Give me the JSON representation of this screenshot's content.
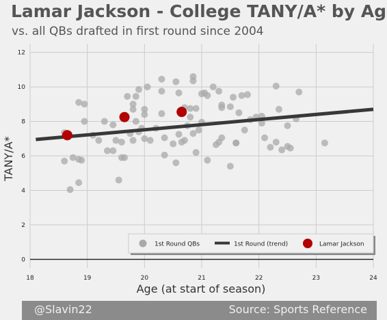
{
  "title": "Lamar Jackson - College TANY/A* by Age",
  "subtitle": "vs. all QBs drafted in first round since 2004",
  "footer": {
    "left": "@Slavin22",
    "right": "Source: Sports Reference"
  },
  "colors": {
    "background": "#f0f0f0",
    "grid": "#cbcbcb",
    "scatter": "#a9a9a9",
    "trend": "#383838",
    "highlight": "#b30000",
    "footer_bg": "#8b8b8b"
  },
  "chart_data": {
    "type": "scatter",
    "xlabel": "Age (at start of season)",
    "ylabel": "TANY/A*",
    "xlim": [
      18,
      24
    ],
    "ylim": [
      -0.5,
      12.5
    ],
    "xticks": [
      18,
      19,
      20,
      21,
      22,
      23,
      24
    ],
    "yticks": [
      0,
      2,
      4,
      6,
      8,
      10,
      12
    ],
    "grid": true,
    "legend": {
      "placement": "lower-right",
      "entries": [
        "1st Round QBs",
        "1st Round (trend)",
        "Lamar Jackson"
      ]
    },
    "series": [
      {
        "name": "1st Round QBs",
        "points": [
          [
            18.6,
            7.35
          ],
          [
            18.6,
            5.7
          ],
          [
            18.7,
            4.05
          ],
          [
            18.75,
            5.9
          ],
          [
            18.85,
            5.8
          ],
          [
            18.85,
            4.45
          ],
          [
            18.85,
            9.1
          ],
          [
            18.9,
            5.75
          ],
          [
            18.95,
            9.0
          ],
          [
            18.95,
            8.0
          ],
          [
            19.1,
            7.2
          ],
          [
            19.2,
            6.9
          ],
          [
            19.3,
            8.0
          ],
          [
            19.35,
            6.3
          ],
          [
            19.45,
            7.8
          ],
          [
            19.45,
            6.3
          ],
          [
            19.5,
            6.9
          ],
          [
            19.55,
            4.6
          ],
          [
            19.6,
            6.8
          ],
          [
            19.6,
            5.9
          ],
          [
            19.65,
            5.9
          ],
          [
            19.7,
            9.45
          ],
          [
            19.75,
            7.3
          ],
          [
            19.8,
            9.0
          ],
          [
            19.8,
            8.7
          ],
          [
            19.8,
            6.9
          ],
          [
            19.85,
            9.45
          ],
          [
            19.85,
            8.0
          ],
          [
            19.9,
            9.85
          ],
          [
            19.9,
            7.4
          ],
          [
            19.95,
            7.6
          ],
          [
            20.0,
            8.4
          ],
          [
            20.0,
            8.7
          ],
          [
            20.0,
            7.0
          ],
          [
            20.05,
            10.0
          ],
          [
            20.1,
            6.9
          ],
          [
            20.2,
            7.6
          ],
          [
            20.3,
            10.45
          ],
          [
            20.3,
            9.75
          ],
          [
            20.3,
            8.45
          ],
          [
            20.35,
            7.05
          ],
          [
            20.35,
            6.05
          ],
          [
            20.5,
            6.7
          ],
          [
            20.55,
            10.3
          ],
          [
            20.55,
            5.6
          ],
          [
            20.6,
            9.65
          ],
          [
            20.6,
            7.25
          ],
          [
            20.65,
            6.8
          ],
          [
            20.7,
            8.8
          ],
          [
            20.7,
            6.9
          ],
          [
            20.75,
            7.75
          ],
          [
            20.8,
            8.25
          ],
          [
            20.8,
            8.75
          ],
          [
            20.85,
            7.3
          ],
          [
            20.85,
            10.6
          ],
          [
            20.85,
            10.35
          ],
          [
            20.9,
            8.75
          ],
          [
            20.9,
            6.2
          ],
          [
            20.95,
            7.5
          ],
          [
            21.0,
            7.95
          ],
          [
            21.0,
            9.6
          ],
          [
            21.05,
            9.65
          ],
          [
            21.1,
            9.5
          ],
          [
            21.1,
            5.75
          ],
          [
            21.2,
            10.0
          ],
          [
            21.25,
            6.65
          ],
          [
            21.3,
            9.75
          ],
          [
            21.3,
            6.8
          ],
          [
            21.35,
            8.95
          ],
          [
            21.35,
            8.8
          ],
          [
            21.35,
            7.05
          ],
          [
            21.5,
            5.4
          ],
          [
            21.5,
            8.85
          ],
          [
            21.55,
            9.4
          ],
          [
            21.6,
            6.75
          ],
          [
            21.6,
            6.75
          ],
          [
            21.65,
            8.5
          ],
          [
            21.7,
            9.5
          ],
          [
            21.75,
            7.5
          ],
          [
            21.8,
            9.55
          ],
          [
            21.85,
            8.1
          ],
          [
            21.95,
            8.25
          ],
          [
            22.05,
            8.3
          ],
          [
            22.05,
            7.9
          ],
          [
            22.1,
            7.05
          ],
          [
            22.2,
            6.5
          ],
          [
            22.3,
            10.05
          ],
          [
            22.3,
            6.8
          ],
          [
            22.35,
            8.7
          ],
          [
            22.4,
            6.35
          ],
          [
            22.5,
            6.55
          ],
          [
            22.5,
            7.75
          ],
          [
            22.55,
            6.45
          ],
          [
            22.65,
            8.15
          ],
          [
            22.7,
            9.7
          ],
          [
            23.15,
            6.75
          ]
        ]
      },
      {
        "name": "1st Round (trend)",
        "type": "line",
        "points": [
          [
            18.1,
            6.95
          ],
          [
            24.0,
            8.7
          ]
        ]
      },
      {
        "name": "Lamar Jackson",
        "points": [
          [
            18.65,
            7.2
          ],
          [
            19.65,
            8.25
          ],
          [
            20.65,
            8.55
          ]
        ]
      }
    ]
  }
}
